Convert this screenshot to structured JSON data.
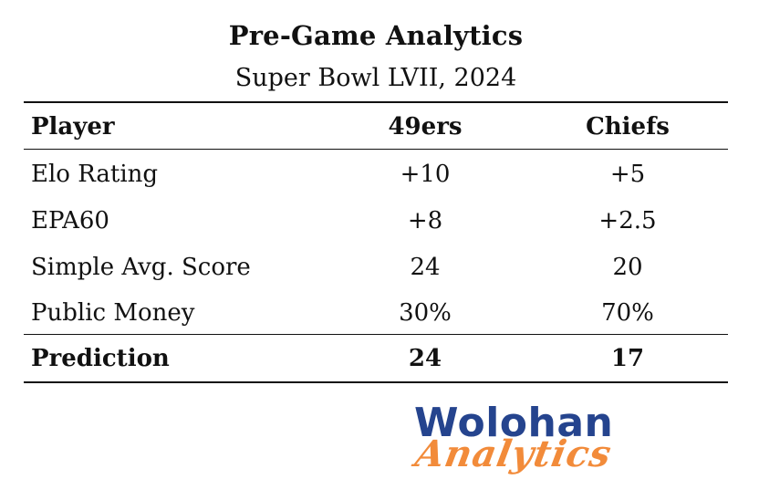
{
  "header": {
    "title": "Pre-Game Analytics",
    "subtitle": "Super Bowl LVII, 2024"
  },
  "table": {
    "columns": [
      "Player",
      "49ers",
      "Chiefs"
    ],
    "rows": [
      {
        "label": "Elo Rating",
        "team1": "+10",
        "team2": "+5"
      },
      {
        "label": "EPA60",
        "team1": "+8",
        "team2": "+2.5"
      },
      {
        "label": "Simple Avg. Score",
        "team1": "24",
        "team2": "20"
      },
      {
        "label": "Public Money",
        "team1": "30%",
        "team2": "70%"
      }
    ],
    "prediction": {
      "label": "Prediction",
      "team1": "24",
      "team2": "17"
    }
  },
  "logo": {
    "line1": "Wolohan",
    "line2": "Analytics",
    "colors": {
      "line1": "#25448e",
      "line2": "#f28b3a"
    }
  }
}
